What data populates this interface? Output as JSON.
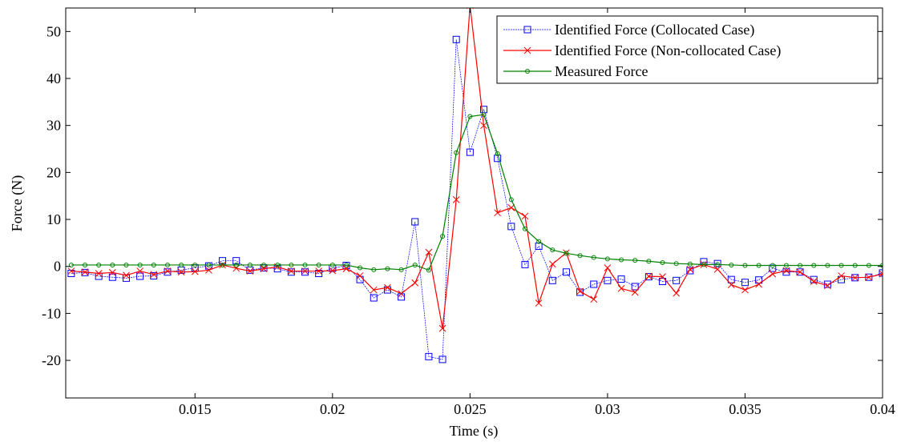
{
  "chart_data": {
    "type": "line",
    "title": "",
    "xlabel": "Time (s)",
    "ylabel": "Force (N)",
    "xlim": [
      0.0103,
      0.04
    ],
    "ylim": [
      -28,
      55
    ],
    "xticks": [
      0.015,
      0.02,
      0.025,
      0.03,
      0.035,
      0.04
    ],
    "xtick_labels": [
      "0.015",
      "0.02",
      "0.025",
      "0.03",
      "0.035",
      "0.04"
    ],
    "yticks": [
      -20,
      -10,
      0,
      10,
      20,
      30,
      40,
      50
    ],
    "ytick_labels": [
      "-20",
      "-10",
      "0",
      "10",
      "20",
      "30",
      "40",
      "50"
    ],
    "grid": false,
    "legend_position": "top-right",
    "x": [
      0.0105,
      0.011,
      0.0115,
      0.012,
      0.0125,
      0.013,
      0.0135,
      0.014,
      0.0145,
      0.015,
      0.0155,
      0.016,
      0.0165,
      0.017,
      0.0175,
      0.018,
      0.0185,
      0.019,
      0.0195,
      0.02,
      0.0205,
      0.021,
      0.0215,
      0.022,
      0.0225,
      0.023,
      0.0235,
      0.024,
      0.0245,
      0.025,
      0.0255,
      0.026,
      0.0265,
      0.027,
      0.0275,
      0.028,
      0.0285,
      0.029,
      0.0295,
      0.03,
      0.0305,
      0.031,
      0.0315,
      0.032,
      0.0325,
      0.033,
      0.0335,
      0.034,
      0.0345,
      0.035,
      0.0355,
      0.036,
      0.0365,
      0.037,
      0.0375,
      0.038,
      0.0385,
      0.039,
      0.0395,
      0.04
    ],
    "series": [
      {
        "name": "Identified Force (Collocated Case)",
        "color": "#0000ff",
        "marker": "square",
        "values": [
          -1.5,
          -1.3,
          -2.1,
          -2.3,
          -2.5,
          -2.1,
          -2.0,
          -1.2,
          -0.8,
          -0.3,
          0.1,
          1.2,
          1.2,
          -0.8,
          -0.3,
          -0.5,
          -1.2,
          -1.2,
          -1.5,
          -0.4,
          0.2,
          -2.8,
          -6.7,
          -5.0,
          -6.5,
          9.5,
          -19.2,
          -19.8,
          48.3,
          24.3,
          33.4,
          23.0,
          8.5,
          0.4,
          4.3,
          -3.0,
          -1.2,
          -5.5,
          -3.8,
          -3.0,
          -2.7,
          -4.3,
          -2.2,
          -3.2,
          -3.0,
          -0.9,
          1.0,
          0.6,
          -2.8,
          -3.4,
          -2.9,
          -0.4,
          -1.2,
          -1.2,
          -2.8,
          -3.8,
          -2.8,
          -2.4,
          -2.3,
          -1.4
        ]
      },
      {
        "name": "Identified Force (Non-collocated Case)",
        "color": "#ff0000",
        "marker": "x",
        "values": [
          -1.0,
          -1.2,
          -1.5,
          -1.3,
          -1.9,
          -1.0,
          -1.7,
          -1.0,
          -1.2,
          -1.1,
          -0.8,
          0.3,
          -0.4,
          -1.0,
          -0.5,
          -0.1,
          -1.0,
          -1.0,
          -1.0,
          -0.9,
          -0.5,
          -2.0,
          -5.0,
          -4.5,
          -5.8,
          -3.5,
          3.0,
          -13.2,
          14.2,
          55.5,
          30.0,
          11.4,
          12.5,
          10.7,
          -7.8,
          0.5,
          2.9,
          -5.3,
          -7.0,
          -0.3,
          -4.7,
          -5.5,
          -2.1,
          -2.2,
          -5.7,
          -0.6,
          0.4,
          -0.6,
          -3.9,
          -5.0,
          -3.8,
          -1.6,
          -0.9,
          -1.2,
          -3.2,
          -4.1,
          -2.0,
          -2.4,
          -2.3,
          -1.6
        ]
      },
      {
        "name": "Measured Force",
        "color": "#008000",
        "marker": "circle",
        "values": [
          0.3,
          0.3,
          0.3,
          0.3,
          0.3,
          0.3,
          0.3,
          0.3,
          0.3,
          0.3,
          0.3,
          0.3,
          0.3,
          0.3,
          0.3,
          0.3,
          0.3,
          0.3,
          0.3,
          0.3,
          0.3,
          -0.3,
          -0.7,
          -0.5,
          -0.7,
          0.3,
          -0.8,
          6.4,
          24.2,
          31.9,
          32.3,
          24.0,
          14.2,
          8.0,
          5.3,
          3.5,
          2.8,
          2.3,
          1.9,
          1.6,
          1.4,
          1.3,
          1.1,
          0.8,
          0.6,
          0.5,
          0.4,
          0.4,
          0.3,
          0.2,
          0.2,
          0.2,
          0.2,
          0.2,
          0.2,
          0.2,
          0.2,
          0.2,
          0.2,
          0.2
        ]
      }
    ]
  }
}
